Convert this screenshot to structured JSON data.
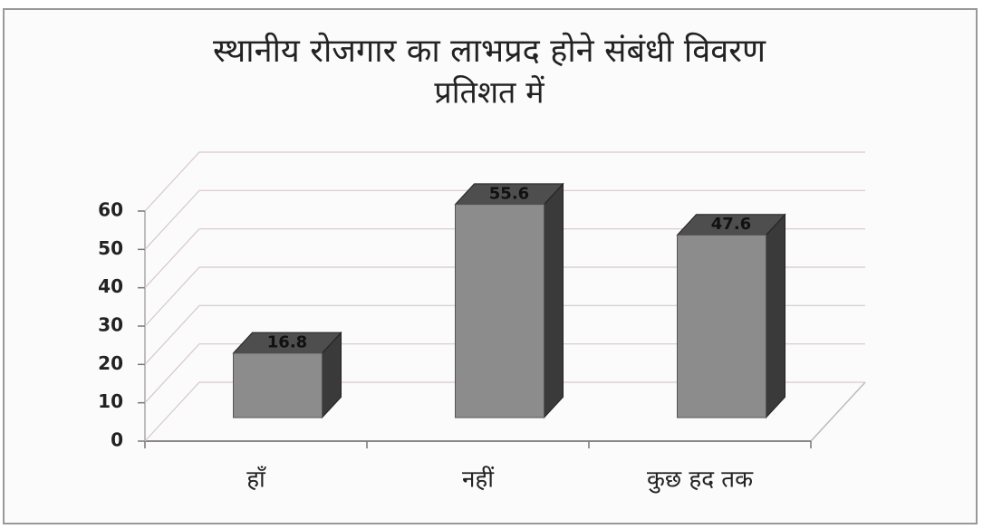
{
  "chart_data": {
    "type": "bar3d",
    "title": "स्थानीय रोजगार का लाभप्रद होने संबंधी विवरण",
    "subtitle": "प्रतिशत में",
    "categories": [
      "हाँ",
      "नहीं",
      "कुछ हद तक"
    ],
    "values": [
      16.8,
      55.6,
      47.6
    ],
    "color": "#8c8c8c",
    "ylim": [
      0,
      60
    ],
    "yticks": [
      0,
      10,
      20,
      30,
      40,
      50,
      60
    ],
    "grid": true
  }
}
